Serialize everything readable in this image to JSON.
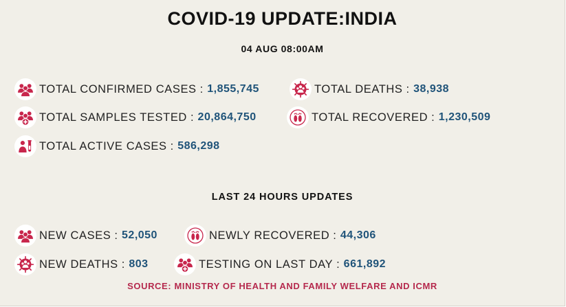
{
  "title": "COVID-19 UPDATE:INDIA",
  "date": "04 AUG 08:00AM",
  "separator": ":",
  "totals": {
    "confirmed": {
      "label": "TOTAL CONFIRMED CASES",
      "value": "1,855,745",
      "icon": "people-group-icon"
    },
    "deaths": {
      "label": "TOTAL DEATHS",
      "value": "38,938",
      "icon": "virus-people-icon"
    },
    "tested": {
      "label": "TOTAL SAMPLES TESTED",
      "value": "20,864,750",
      "icon": "people-plus-icon"
    },
    "recovered": {
      "label": "TOTAL RECOVERED",
      "value": "1,230,509",
      "icon": "footprints-icon"
    },
    "active": {
      "label": "TOTAL ACTIVE CASES",
      "value": "586,298",
      "icon": "person-test-tube-icon"
    }
  },
  "last24": {
    "heading": "LAST 24 HOURS UPDATES",
    "new_cases": {
      "label": "NEW CASES",
      "value": "52,050",
      "icon": "people-group-icon"
    },
    "newly_recovered": {
      "label": "NEWLY RECOVERED",
      "value": "44,306",
      "icon": "footprints-icon"
    },
    "new_deaths": {
      "label": "NEW DEATHS",
      "value": "803",
      "icon": "virus-people-icon"
    },
    "testing_last_day": {
      "label": "TESTING ON LAST DAY",
      "value": "661,892",
      "icon": "people-plus-icon"
    }
  },
  "source": "SOURCE: MINISTRY OF HEALTH AND FAMILY WELFARE AND ICMR",
  "colors": {
    "background": "#f1efe8",
    "icon": "#c8264c",
    "value": "#1f5379",
    "source": "#b5294d"
  }
}
